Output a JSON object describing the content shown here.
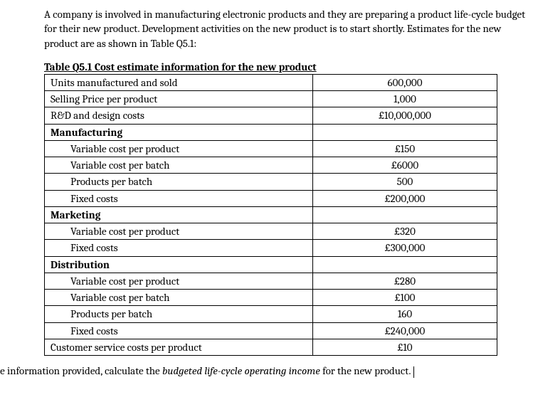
{
  "intro": "A company is involved in manufacturing electronic products and they are preparing a product life-cycle budget for their new product. Development activities on the new product is to start shortly. Estimates for the new product are as shown in Table Q5.1:",
  "table_title": "Table Q5.1  Cost estimate information for the new product",
  "rows": [
    {
      "label": "Units manufactured and sold",
      "value": "600,000",
      "indent": false,
      "section": false
    },
    {
      "label": "Selling Price per product",
      "value": "1,000",
      "indent": false,
      "section": false
    },
    {
      "label": "R&D and design costs",
      "value": "£10,000,000",
      "indent": false,
      "section": false
    },
    {
      "label": "Manufacturing",
      "value": "",
      "indent": false,
      "section": true
    },
    {
      "label": "Variable cost per product",
      "value": "£150",
      "indent": true,
      "section": false
    },
    {
      "label": "Variable cost per batch",
      "value": "£6000",
      "indent": true,
      "section": false
    },
    {
      "label": "Products per batch",
      "value": "500",
      "indent": true,
      "section": false
    },
    {
      "label": "Fixed costs",
      "value": "£200,000",
      "indent": true,
      "section": false
    },
    {
      "label": "Marketing",
      "value": "",
      "indent": false,
      "section": true
    },
    {
      "label": "Variable cost per product",
      "value": "£320",
      "indent": true,
      "section": false
    },
    {
      "label": "Fixed costs",
      "value": "£300,000",
      "indent": true,
      "section": false
    },
    {
      "label": "Distribution",
      "value": "",
      "indent": false,
      "section": true
    },
    {
      "label": "Variable cost per product",
      "value": "£280",
      "indent": true,
      "section": false
    },
    {
      "label": "Variable cost per batch",
      "value": "£100",
      "indent": true,
      "section": false
    },
    {
      "label": "Products per batch",
      "value": "160",
      "indent": true,
      "section": false
    },
    {
      "label": "Fixed costs",
      "value": "£240,000",
      "indent": true,
      "section": false
    },
    {
      "label": "Customer service costs per product",
      "value": "£10",
      "indent": false,
      "section": false
    }
  ],
  "closing_prefix": "Using the information provided, calculate the ",
  "closing_em": "budgeted life-cycle operating income",
  "closing_suffix": " for the new product."
}
